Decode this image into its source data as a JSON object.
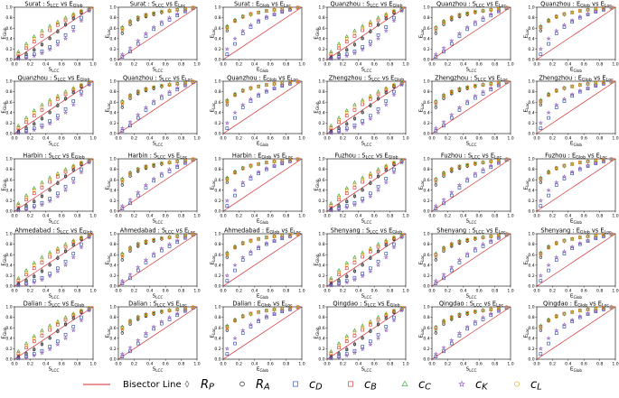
{
  "chart_data": {
    "type": "scatter",
    "layout_rows": 5,
    "layout_cols": 6,
    "xlim": [
      0.0,
      1.0
    ],
    "ylim": [
      0.0,
      1.0
    ],
    "ticks": [
      "0.0",
      "0.2",
      "0.4",
      "0.6",
      "0.8",
      "1.0"
    ],
    "grid": false,
    "cities": [
      "Surat",
      "Quanzhou",
      "Quanzhou",
      "Zhengzhou",
      "Harbin",
      "Fuzhou",
      "Ahmedabad",
      "Shenyang",
      "Dalian",
      "Qingdao"
    ],
    "panels": [
      {
        "city": "Surat",
        "kind": "S_LCC vs E_Glob",
        "xlabel": "S_LCC",
        "ylabel": "E_Glob"
      },
      {
        "city": "Surat",
        "kind": "S_LCC vs E_Loc",
        "xlabel": "S_LCC",
        "ylabel": "E_Loc"
      },
      {
        "city": "Surat",
        "kind": "E_Glob vs E_Loc",
        "xlabel": "E_Glob",
        "ylabel": "E_Loc"
      },
      {
        "city": "Quanzhou",
        "kind": "S_LCC vs E_Glob",
        "xlabel": "S_LCC",
        "ylabel": "E_Glob"
      },
      {
        "city": "Quanzhou",
        "kind": "S_LCC vs E_Loc",
        "xlabel": "S_LCC",
        "ylabel": "E_Loc"
      },
      {
        "city": "Quanzhou",
        "kind": "E_Glob vs E_Loc",
        "xlabel": "E_Glob",
        "ylabel": "E_Loc"
      },
      {
        "city": "Quanzhou",
        "kind": "S_LCC vs E_Glob",
        "xlabel": "S_LCC",
        "ylabel": "E_Glob"
      },
      {
        "city": "Quanzhou",
        "kind": "S_LCC vs E_Loc",
        "xlabel": "S_LCC",
        "ylabel": "E_Loc"
      },
      {
        "city": "Quanzhou",
        "kind": "E_Glob vs E_Loc",
        "xlabel": "E_Glob",
        "ylabel": "E_Loc"
      },
      {
        "city": "Zhengzhou",
        "kind": "S_LCC vs E_Glob",
        "xlabel": "S_LCC",
        "ylabel": "E_Glob"
      },
      {
        "city": "Zhengzhou",
        "kind": "S_LCC vs E_Loc",
        "xlabel": "S_LCC",
        "ylabel": "E_Loc"
      },
      {
        "city": "Zhengzhou",
        "kind": "E_Glob vs E_Loc",
        "xlabel": "E_Glob",
        "ylabel": "E_Loc"
      },
      {
        "city": "Harbin",
        "kind": "S_LCC vs E_Glob",
        "xlabel": "S_LCC",
        "ylabel": "E_Glob"
      },
      {
        "city": "Harbin",
        "kind": "S_LCC vs E_Loc",
        "xlabel": "S_LCC",
        "ylabel": "E_Loc"
      },
      {
        "city": "Harbin",
        "kind": "E_Glob vs E_Loc",
        "xlabel": "E_Glob",
        "ylabel": "E_Loc"
      },
      {
        "city": "Fuzhou",
        "kind": "S_LCC vs E_Glob",
        "xlabel": "S_LCC",
        "ylabel": "E_Glob"
      },
      {
        "city": "Fuzhou",
        "kind": "S_LCC vs E_Loc",
        "xlabel": "S_LCC",
        "ylabel": "E_Loc"
      },
      {
        "city": "Fuzhou",
        "kind": "E_Glob vs E_Loc",
        "xlabel": "E_Glob",
        "ylabel": "E_Loc"
      },
      {
        "city": "Ahmedabad",
        "kind": "S_LCC vs E_Glob",
        "xlabel": "S_LCC",
        "ylabel": "E_Glob"
      },
      {
        "city": "Ahmedabad",
        "kind": "S_LCC vs E_Loc",
        "xlabel": "S_LCC",
        "ylabel": "E_Loc"
      },
      {
        "city": "Ahmedabad",
        "kind": "E_Glob vs E_Loc",
        "xlabel": "E_Glob",
        "ylabel": "E_Loc"
      },
      {
        "city": "Shenyang",
        "kind": "S_LCC vs E_Glob",
        "xlabel": "S_LCC",
        "ylabel": "E_Glob"
      },
      {
        "city": "Shenyang",
        "kind": "S_LCC vs E_Loc",
        "xlabel": "S_LCC",
        "ylabel": "E_Loc"
      },
      {
        "city": "Shenyang",
        "kind": "E_Glob vs E_Loc",
        "xlabel": "E_Glob",
        "ylabel": "E_Loc"
      },
      {
        "city": "Dalian",
        "kind": "S_LCC vs E_Glob",
        "xlabel": "S_LCC",
        "ylabel": "E_Glob"
      },
      {
        "city": "Dalian",
        "kind": "S_LCC vs E_Loc",
        "xlabel": "S_LCC",
        "ylabel": "E_Loc"
      },
      {
        "city": "Dalian",
        "kind": "E_Glob vs E_Loc",
        "xlabel": "E_Glob",
        "ylabel": "E_Loc"
      },
      {
        "city": "Qingdao",
        "kind": "S_LCC vs E_Glob",
        "xlabel": "S_LCC",
        "ylabel": "E_Glob"
      },
      {
        "city": "Qingdao",
        "kind": "S_LCC vs E_Loc",
        "xlabel": "S_LCC",
        "ylabel": "E_Loc"
      },
      {
        "city": "Qingdao",
        "kind": "E_Glob vs E_Loc",
        "xlabel": "E_Glob",
        "ylabel": "E_Loc"
      }
    ],
    "series": [
      {
        "name": "R_P",
        "symbol": "R",
        "sub": "P",
        "marker": "diamond",
        "color": "#555555",
        "glob": [
          0.05,
          0.12,
          0.2,
          0.3,
          0.42,
          0.55,
          0.68,
          0.8,
          0.9,
          0.97
        ],
        "loc": [
          0.55,
          0.7,
          0.78,
          0.83,
          0.87,
          0.9,
          0.93,
          0.95,
          0.97,
          0.99
        ],
        "gl": [
          0.6,
          0.75,
          0.82,
          0.86,
          0.9,
          0.93,
          0.95,
          0.97,
          0.98,
          0.99
        ]
      },
      {
        "name": "R_A",
        "symbol": "R",
        "sub": "A",
        "marker": "hexagon",
        "color": "#222222",
        "glob": [
          0.04,
          0.1,
          0.18,
          0.28,
          0.4,
          0.53,
          0.66,
          0.78,
          0.89,
          0.97
        ],
        "loc": [
          0.5,
          0.67,
          0.76,
          0.82,
          0.86,
          0.9,
          0.93,
          0.95,
          0.97,
          0.99
        ],
        "gl": [
          0.55,
          0.73,
          0.81,
          0.86,
          0.9,
          0.93,
          0.95,
          0.97,
          0.98,
          0.99
        ]
      },
      {
        "name": "c_D",
        "symbol": "c",
        "sub": "D",
        "marker": "square",
        "color": "#1f3fa8",
        "glob": [
          0.02,
          0.05,
          0.1,
          0.16,
          0.24,
          0.34,
          0.47,
          0.62,
          0.8,
          0.95
        ],
        "loc": [
          0.05,
          0.15,
          0.3,
          0.45,
          0.58,
          0.68,
          0.76,
          0.84,
          0.92,
          0.98
        ],
        "gl": [
          0.1,
          0.3,
          0.5,
          0.62,
          0.72,
          0.8,
          0.86,
          0.91,
          0.95,
          0.99
        ]
      },
      {
        "name": "c_B",
        "symbol": "c",
        "sub": "B",
        "marker": "square",
        "color": "#d62728",
        "glob": [
          0.1,
          0.22,
          0.34,
          0.45,
          0.56,
          0.66,
          0.75,
          0.84,
          0.92,
          0.98
        ],
        "loc": [
          0.6,
          0.72,
          0.8,
          0.85,
          0.88,
          0.91,
          0.93,
          0.95,
          0.97,
          0.99
        ],
        "gl": [
          0.62,
          0.74,
          0.82,
          0.87,
          0.9,
          0.93,
          0.95,
          0.97,
          0.98,
          0.99
        ]
      },
      {
        "name": "c_C",
        "symbol": "c",
        "sub": "C",
        "marker": "triangle",
        "color": "#2ca02c",
        "glob": [
          0.15,
          0.3,
          0.44,
          0.55,
          0.64,
          0.72,
          0.8,
          0.87,
          0.93,
          0.98
        ],
        "loc": [
          0.62,
          0.74,
          0.81,
          0.86,
          0.89,
          0.92,
          0.94,
          0.96,
          0.97,
          0.99
        ],
        "gl": [
          0.64,
          0.76,
          0.83,
          0.87,
          0.9,
          0.93,
          0.95,
          0.97,
          0.98,
          0.99
        ]
      },
      {
        "name": "c_K",
        "symbol": "c",
        "sub": "K",
        "marker": "star",
        "color": "#9467bd",
        "glob": [
          0.01,
          0.03,
          0.07,
          0.12,
          0.19,
          0.28,
          0.4,
          0.55,
          0.74,
          0.93
        ],
        "loc": [
          0.1,
          0.22,
          0.36,
          0.5,
          0.62,
          0.72,
          0.8,
          0.87,
          0.93,
          0.98
        ],
        "gl": [
          0.2,
          0.4,
          0.55,
          0.66,
          0.75,
          0.82,
          0.87,
          0.92,
          0.96,
          0.99
        ]
      },
      {
        "name": "c_L",
        "symbol": "c",
        "sub": "L",
        "marker": "circle",
        "color": "#e8a317",
        "glob": [
          0.12,
          0.26,
          0.4,
          0.51,
          0.61,
          0.7,
          0.78,
          0.86,
          0.93,
          0.98
        ],
        "loc": [
          0.58,
          0.71,
          0.79,
          0.84,
          0.88,
          0.91,
          0.93,
          0.95,
          0.97,
          0.99
        ],
        "gl": [
          0.6,
          0.73,
          0.81,
          0.86,
          0.9,
          0.93,
          0.95,
          0.97,
          0.98,
          0.99
        ]
      }
    ],
    "x_sample": [
      0.05,
      0.15,
      0.25,
      0.35,
      0.45,
      0.55,
      0.65,
      0.75,
      0.85,
      0.95
    ],
    "bisector": {
      "label": "Bisector Line",
      "color": "#d62728",
      "x": [
        0.0,
        1.0
      ],
      "y": [
        0.0,
        1.0
      ]
    }
  },
  "legend": {
    "bisector_label": "Bisector Line",
    "position": "bottom"
  }
}
